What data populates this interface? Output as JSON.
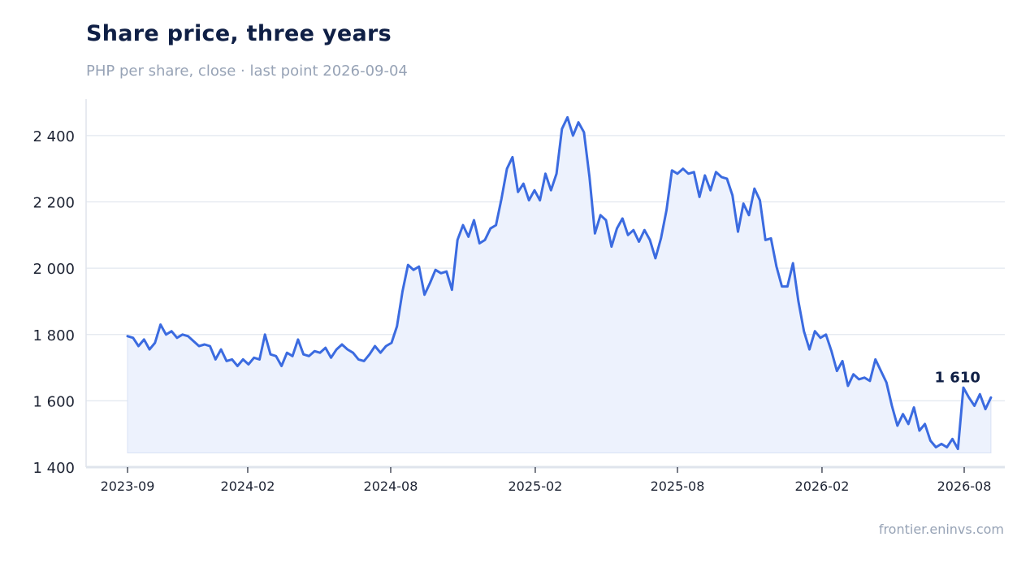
{
  "header": {
    "title": "Share price, three years",
    "subtitle": "PHP per share, close · last point 2026-09-04"
  },
  "footer": {
    "source": "frontier.eninvs.com"
  },
  "colors": {
    "line": "#3b6be0",
    "area": "#edf2fd",
    "grid": "#e2e7ef",
    "axis": "#dfe4ec"
  },
  "chart_data": {
    "type": "area",
    "title": "Share price, three years",
    "xlabel": "",
    "ylabel": "",
    "ylim": [
      1400,
      2510
    ],
    "y_ticks": [
      {
        "value": 1400,
        "label": "1 400"
      },
      {
        "value": 1600,
        "label": "1 600"
      },
      {
        "value": 1800,
        "label": "1 800"
      },
      {
        "value": 2000,
        "label": "2 000"
      },
      {
        "value": 2200,
        "label": "2 200"
      },
      {
        "value": 2400,
        "label": "2 400"
      }
    ],
    "x_ticks": [
      {
        "value": "2023-09-01",
        "label": "2023-09"
      },
      {
        "value": "2024-02-01",
        "label": "2024-02"
      },
      {
        "value": "2024-08-01",
        "label": "2024-08"
      },
      {
        "value": "2025-02-01",
        "label": "2025-02"
      },
      {
        "value": "2025-08-01",
        "label": "2025-08"
      },
      {
        "value": "2026-02-01",
        "label": "2026-02"
      },
      {
        "value": "2026-08-01",
        "label": "2026-08"
      }
    ],
    "grid": true,
    "last_value_label": "1 610",
    "series": [
      {
        "points": [
          [
            "2023-09-01",
            1795
          ],
          [
            "2023-09-08",
            1790
          ],
          [
            "2023-09-15",
            1765
          ],
          [
            "2023-09-22",
            1785
          ],
          [
            "2023-09-29",
            1755
          ],
          [
            "2023-10-06",
            1775
          ],
          [
            "2023-10-13",
            1830
          ],
          [
            "2023-10-20",
            1800
          ],
          [
            "2023-10-27",
            1810
          ],
          [
            "2023-11-03",
            1790
          ],
          [
            "2023-11-10",
            1800
          ],
          [
            "2023-11-17",
            1795
          ],
          [
            "2023-11-24",
            1780
          ],
          [
            "2023-12-01",
            1765
          ],
          [
            "2023-12-08",
            1770
          ],
          [
            "2023-12-15",
            1765
          ],
          [
            "2023-12-22",
            1725
          ],
          [
            "2023-12-29",
            1755
          ],
          [
            "2024-01-05",
            1720
          ],
          [
            "2024-01-12",
            1725
          ],
          [
            "2024-01-19",
            1705
          ],
          [
            "2024-01-26",
            1725
          ],
          [
            "2024-02-02",
            1710
          ],
          [
            "2024-02-09",
            1730
          ],
          [
            "2024-02-16",
            1725
          ],
          [
            "2024-02-23",
            1800
          ],
          [
            "2024-03-01",
            1740
          ],
          [
            "2024-03-08",
            1735
          ],
          [
            "2024-03-15",
            1705
          ],
          [
            "2024-03-22",
            1745
          ],
          [
            "2024-03-29",
            1735
          ],
          [
            "2024-04-05",
            1785
          ],
          [
            "2024-04-12",
            1740
          ],
          [
            "2024-04-19",
            1735
          ],
          [
            "2024-04-26",
            1750
          ],
          [
            "2024-05-03",
            1745
          ],
          [
            "2024-05-10",
            1760
          ],
          [
            "2024-05-17",
            1730
          ],
          [
            "2024-05-24",
            1755
          ],
          [
            "2024-05-31",
            1770
          ],
          [
            "2024-06-07",
            1755
          ],
          [
            "2024-06-14",
            1745
          ],
          [
            "2024-06-21",
            1725
          ],
          [
            "2024-06-28",
            1720
          ],
          [
            "2024-07-05",
            1740
          ],
          [
            "2024-07-12",
            1765
          ],
          [
            "2024-07-19",
            1745
          ],
          [
            "2024-07-26",
            1765
          ],
          [
            "2024-08-02",
            1775
          ],
          [
            "2024-08-09",
            1825
          ],
          [
            "2024-08-16",
            1930
          ],
          [
            "2024-08-23",
            2010
          ],
          [
            "2024-08-30",
            1995
          ],
          [
            "2024-09-06",
            2005
          ],
          [
            "2024-09-13",
            1920
          ],
          [
            "2024-09-20",
            1955
          ],
          [
            "2024-09-27",
            1995
          ],
          [
            "2024-10-04",
            1985
          ],
          [
            "2024-10-11",
            1990
          ],
          [
            "2024-10-18",
            1935
          ],
          [
            "2024-10-25",
            2085
          ],
          [
            "2024-11-01",
            2130
          ],
          [
            "2024-11-08",
            2095
          ],
          [
            "2024-11-15",
            2145
          ],
          [
            "2024-11-22",
            2075
          ],
          [
            "2024-11-29",
            2085
          ],
          [
            "2024-12-06",
            2120
          ],
          [
            "2024-12-13",
            2130
          ],
          [
            "2024-12-20",
            2210
          ],
          [
            "2024-12-27",
            2300
          ],
          [
            "2025-01-03",
            2335
          ],
          [
            "2025-01-10",
            2230
          ],
          [
            "2025-01-17",
            2255
          ],
          [
            "2025-01-24",
            2205
          ],
          [
            "2025-01-31",
            2235
          ],
          [
            "2025-02-07",
            2205
          ],
          [
            "2025-02-14",
            2285
          ],
          [
            "2025-02-21",
            2235
          ],
          [
            "2025-02-28",
            2285
          ],
          [
            "2025-03-07",
            2420
          ],
          [
            "2025-03-14",
            2455
          ],
          [
            "2025-03-21",
            2400
          ],
          [
            "2025-03-28",
            2440
          ],
          [
            "2025-04-04",
            2410
          ],
          [
            "2025-04-11",
            2275
          ],
          [
            "2025-04-18",
            2105
          ],
          [
            "2025-04-25",
            2160
          ],
          [
            "2025-05-02",
            2145
          ],
          [
            "2025-05-09",
            2065
          ],
          [
            "2025-05-16",
            2120
          ],
          [
            "2025-05-23",
            2150
          ],
          [
            "2025-05-30",
            2100
          ],
          [
            "2025-06-06",
            2115
          ],
          [
            "2025-06-13",
            2080
          ],
          [
            "2025-06-20",
            2115
          ],
          [
            "2025-06-27",
            2085
          ],
          [
            "2025-07-04",
            2030
          ],
          [
            "2025-07-11",
            2090
          ],
          [
            "2025-07-18",
            2175
          ],
          [
            "2025-07-25",
            2295
          ],
          [
            "2025-08-01",
            2285
          ],
          [
            "2025-08-08",
            2300
          ],
          [
            "2025-08-15",
            2285
          ],
          [
            "2025-08-22",
            2290
          ],
          [
            "2025-08-29",
            2215
          ],
          [
            "2025-09-05",
            2280
          ],
          [
            "2025-09-12",
            2235
          ],
          [
            "2025-09-19",
            2290
          ],
          [
            "2025-09-26",
            2275
          ],
          [
            "2025-10-03",
            2270
          ],
          [
            "2025-10-10",
            2220
          ],
          [
            "2025-10-17",
            2110
          ],
          [
            "2025-10-24",
            2195
          ],
          [
            "2025-10-31",
            2160
          ],
          [
            "2025-11-07",
            2240
          ],
          [
            "2025-11-14",
            2205
          ],
          [
            "2025-11-21",
            2085
          ],
          [
            "2025-11-28",
            2090
          ],
          [
            "2025-12-05",
            2005
          ],
          [
            "2025-12-12",
            1945
          ],
          [
            "2025-12-19",
            1945
          ],
          [
            "2025-12-26",
            2015
          ],
          [
            "2026-01-02",
            1900
          ],
          [
            "2026-01-09",
            1810
          ],
          [
            "2026-01-16",
            1755
          ],
          [
            "2026-01-23",
            1810
          ],
          [
            "2026-01-30",
            1790
          ],
          [
            "2026-02-06",
            1800
          ],
          [
            "2026-02-13",
            1750
          ],
          [
            "2026-02-20",
            1690
          ],
          [
            "2026-02-27",
            1720
          ],
          [
            "2026-03-06",
            1645
          ],
          [
            "2026-03-13",
            1680
          ],
          [
            "2026-03-20",
            1665
          ],
          [
            "2026-03-27",
            1670
          ],
          [
            "2026-04-03",
            1660
          ],
          [
            "2026-04-10",
            1725
          ],
          [
            "2026-04-17",
            1690
          ],
          [
            "2026-04-24",
            1655
          ],
          [
            "2026-05-01",
            1585
          ],
          [
            "2026-05-08",
            1525
          ],
          [
            "2026-05-15",
            1560
          ],
          [
            "2026-05-22",
            1530
          ],
          [
            "2026-05-29",
            1580
          ],
          [
            "2026-06-05",
            1510
          ],
          [
            "2026-06-12",
            1530
          ],
          [
            "2026-06-19",
            1480
          ],
          [
            "2026-06-26",
            1460
          ],
          [
            "2026-07-03",
            1470
          ],
          [
            "2026-07-10",
            1460
          ],
          [
            "2026-07-17",
            1485
          ],
          [
            "2026-07-24",
            1455
          ],
          [
            "2026-07-31",
            1640
          ],
          [
            "2026-08-07",
            1610
          ],
          [
            "2026-08-14",
            1585
          ],
          [
            "2026-08-21",
            1620
          ],
          [
            "2026-08-28",
            1575
          ],
          [
            "2026-09-04",
            1610
          ]
        ]
      }
    ]
  }
}
